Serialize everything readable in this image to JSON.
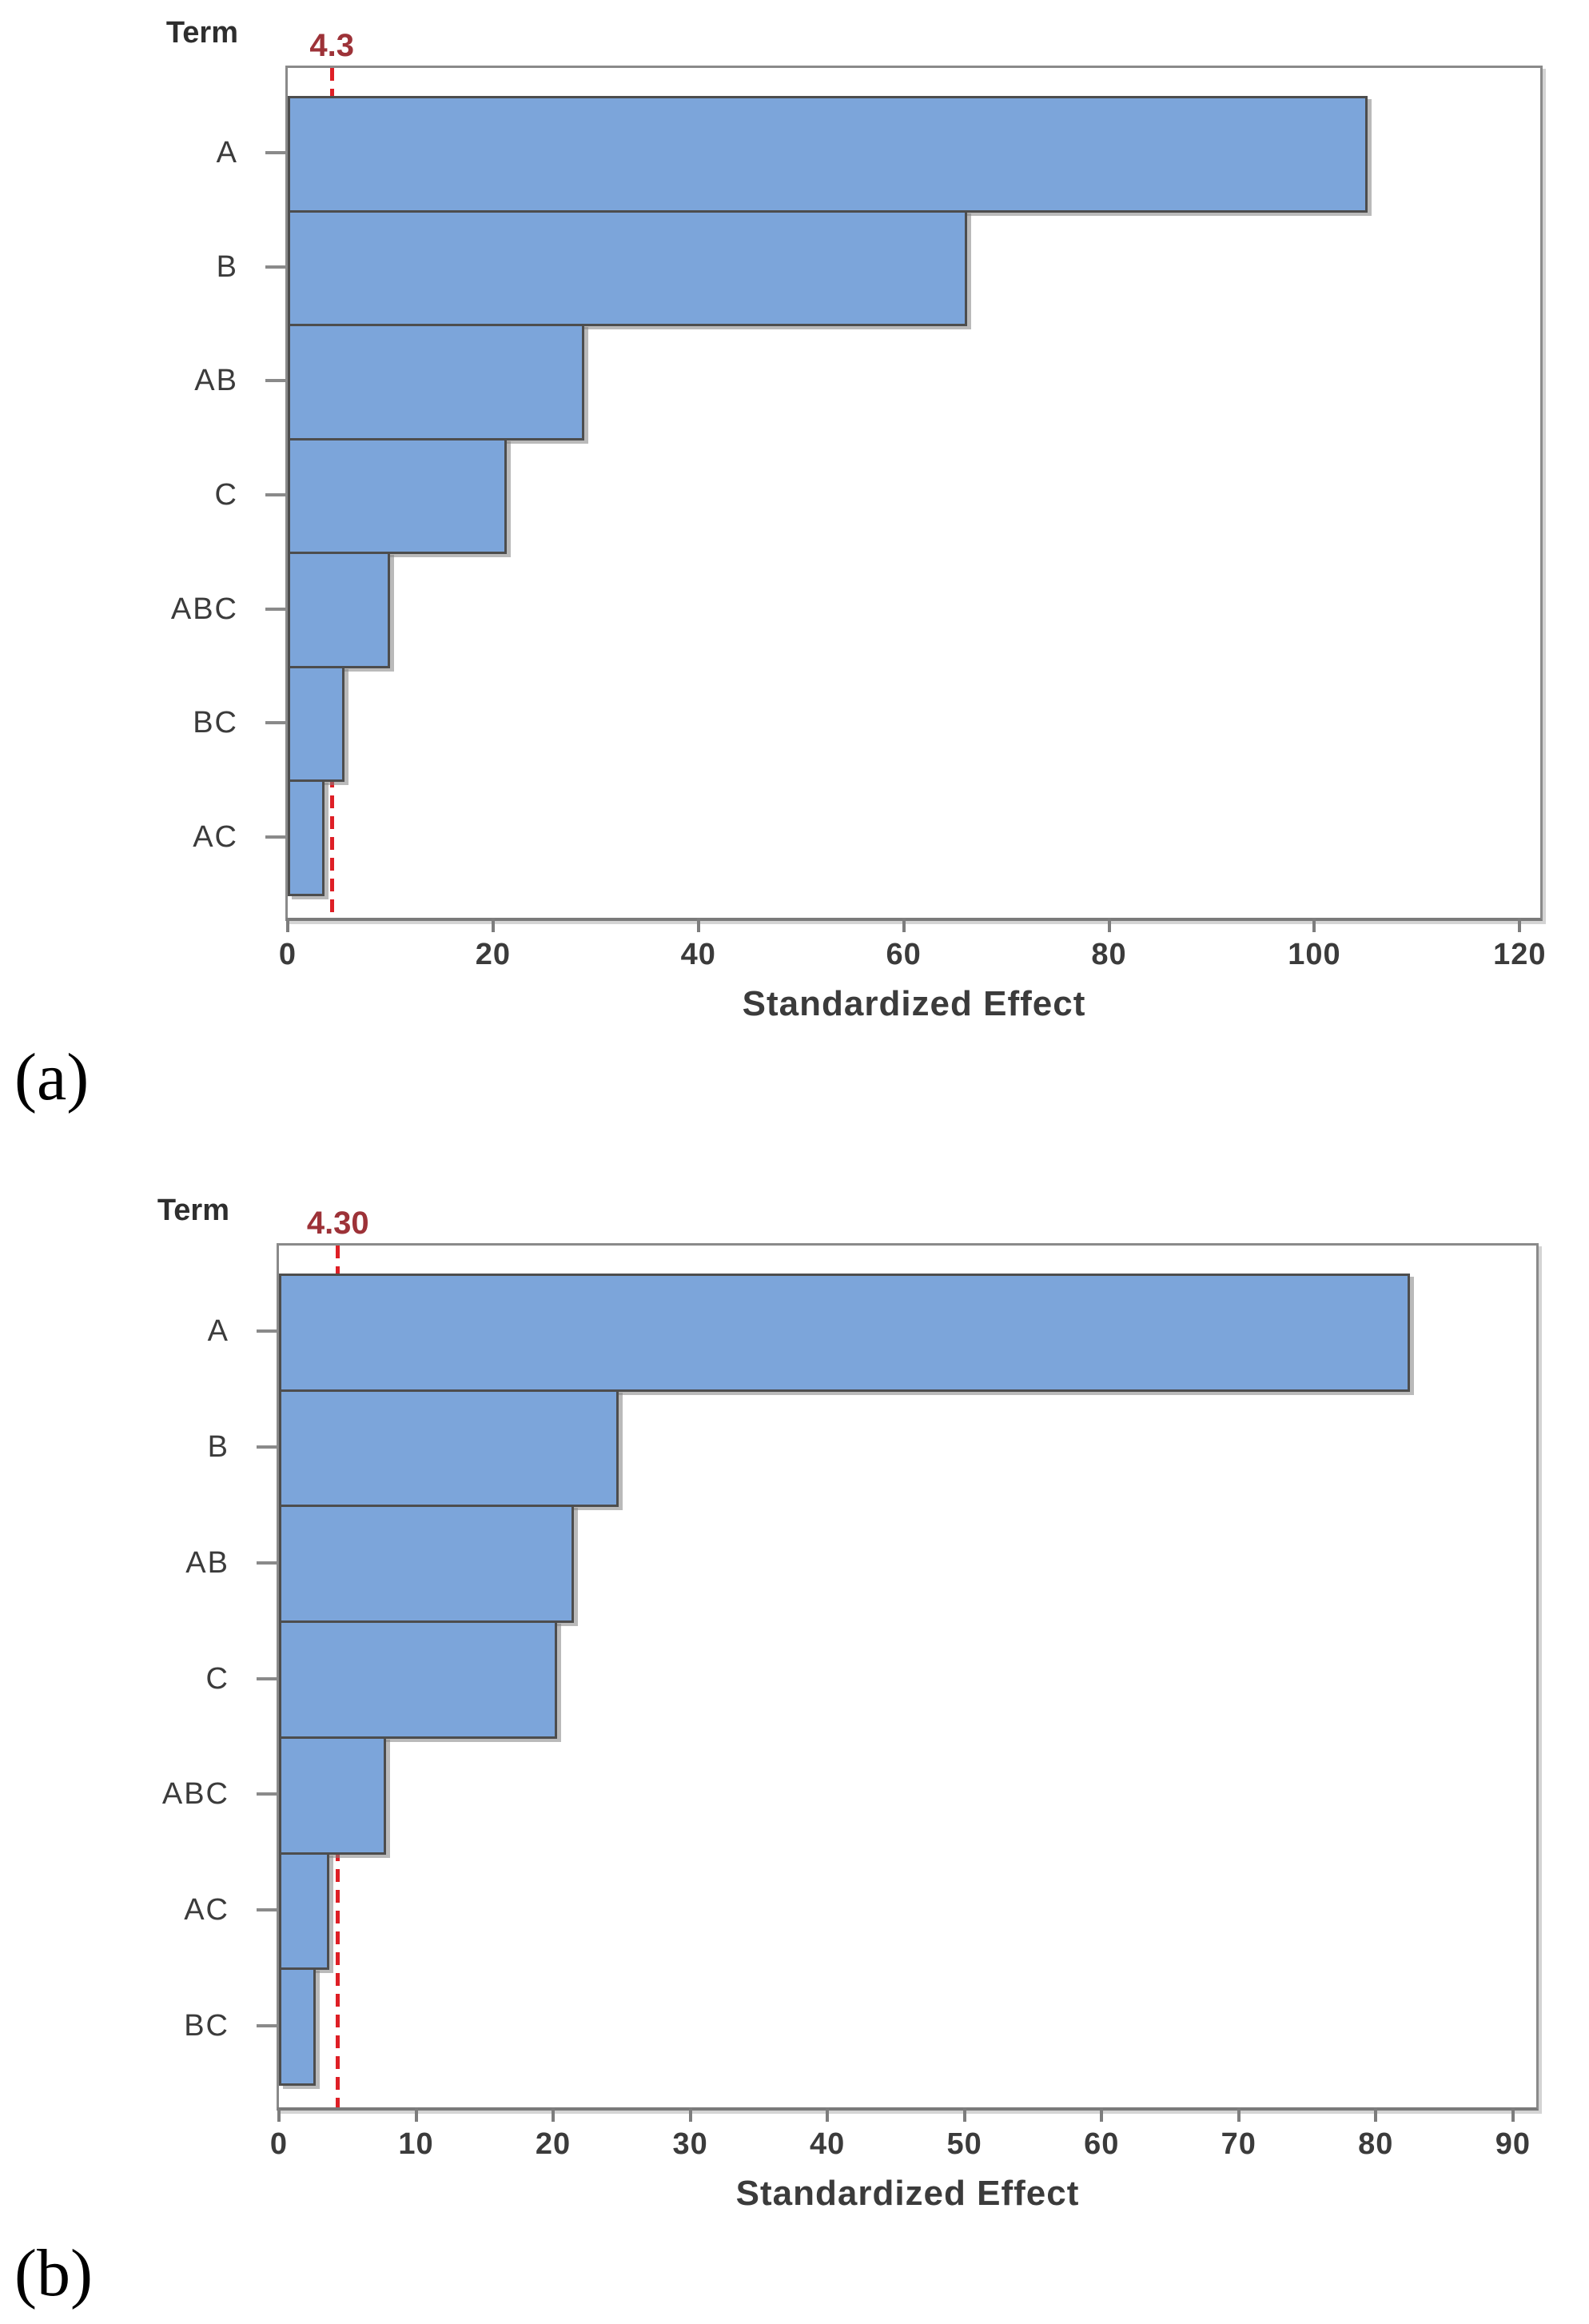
{
  "colors": {
    "bar_fill": "#7CA5DA",
    "bar_border": "#4D4D4D",
    "plot_border": "#8A8A8A",
    "axis_line": "#7A7A7A",
    "tick_color": "#7D7D7D",
    "text_color": "#3B3B3B",
    "reference_line": "#DE1F26",
    "reference_label": "#9D3238",
    "caption_color": "#000000"
  },
  "chart_data": [
    {
      "id": "a",
      "type": "bar",
      "orientation": "horizontal",
      "term_axis_label": "Term",
      "xlabel": "Standardized Effect",
      "categories": [
        "A",
        "B",
        "AB",
        "C",
        "ABC",
        "BC",
        "AC"
      ],
      "values": [
        105.2,
        66.2,
        28.9,
        21.3,
        10.0,
        5.5,
        3.6
      ],
      "reference_line": {
        "value": 4.3,
        "label": "4.3"
      },
      "x_ticks": [
        0,
        20,
        40,
        60,
        80,
        100,
        120
      ],
      "xlim": [
        0,
        122
      ],
      "grid": false,
      "legend": "none",
      "caption": "(a)"
    },
    {
      "id": "b",
      "type": "bar",
      "orientation": "horizontal",
      "term_axis_label": "Term",
      "xlabel": "Standardized Effect",
      "categories": [
        "A",
        "B",
        "AB",
        "C",
        "ABC",
        "AC",
        "BC"
      ],
      "values": [
        82.5,
        24.8,
        21.5,
        20.3,
        7.8,
        3.7,
        2.7
      ],
      "reference_line": {
        "value": 4.3,
        "label": "4.30"
      },
      "x_ticks": [
        0,
        10,
        20,
        30,
        40,
        50,
        60,
        70,
        80,
        90
      ],
      "xlim": [
        0,
        91.7
      ],
      "grid": false,
      "legend": "none",
      "caption": "(b)"
    }
  ]
}
